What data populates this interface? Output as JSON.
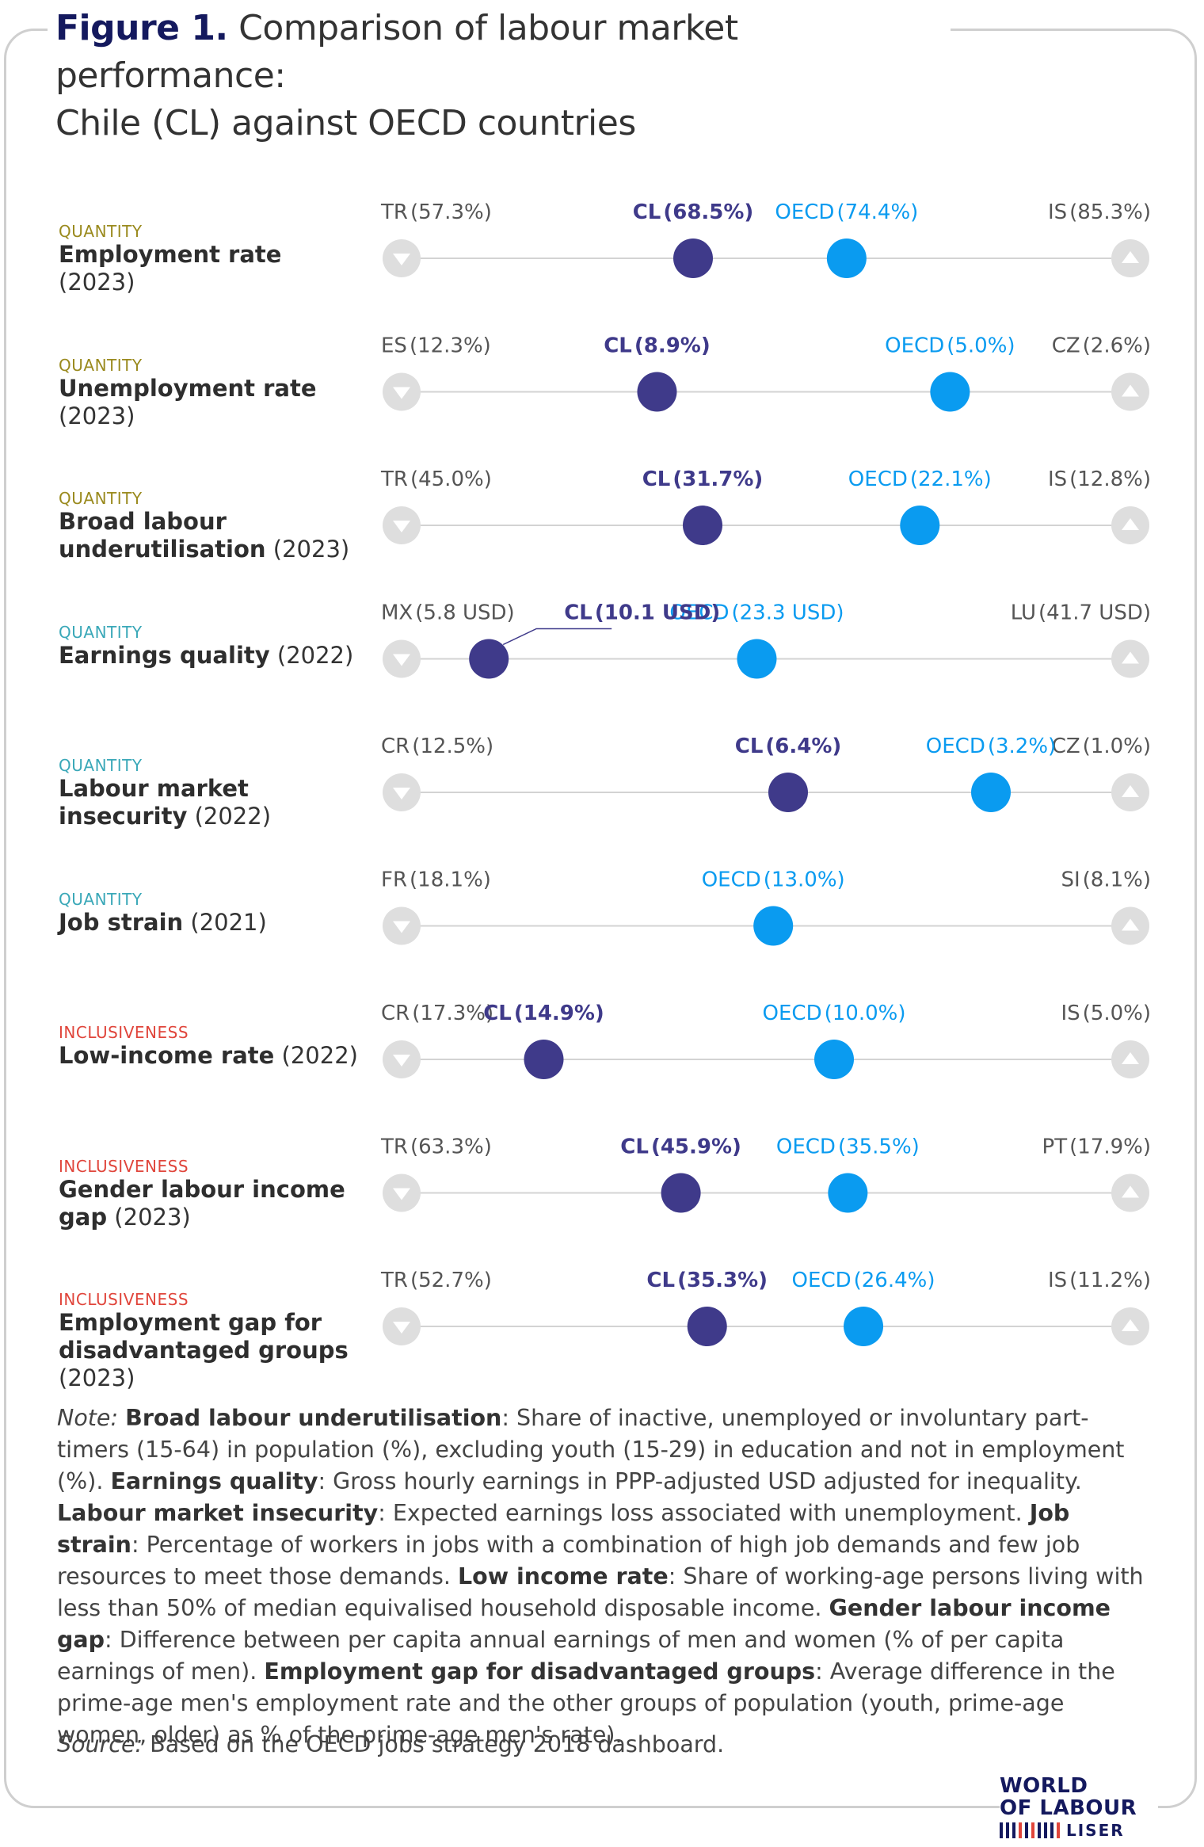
{
  "title": {
    "figure_label": "Figure 1.",
    "line1": "Comparison of labour market performance:",
    "line2": "Chile (CL) against OECD countries"
  },
  "colors": {
    "cl": "#3f3a8a",
    "oecd": "#0a9bf0",
    "quantity": "#9a8a1e",
    "quality": "#3aa8b8",
    "inclusiveness": "#e0453b",
    "endpoint": "#dedede",
    "track": "#d3d3d3"
  },
  "chart_data": {
    "type": "dot-range",
    "rows": [
      {
        "category": "QUANTITY",
        "cat_key": "quantity",
        "name": "Employment rate",
        "year": "(2023)",
        "worst": {
          "code": "TR",
          "label": "(57.3%)",
          "value": 57.3
        },
        "best": {
          "code": "IS",
          "label": "(85.3%)",
          "value": 85.3
        },
        "cl": {
          "code": "CL",
          "label": "(68.5%)",
          "value": 68.5
        },
        "oecd": {
          "code": "OECD",
          "label": "(74.4%)",
          "value": 74.4
        }
      },
      {
        "category": "QUANTITY",
        "cat_key": "quantity",
        "name": "Unemployment rate",
        "year": "(2023)",
        "worst": {
          "code": "ES",
          "label": "(12.3%)",
          "value": 12.3
        },
        "best": {
          "code": "CZ",
          "label": "(2.6%)",
          "value": 2.6
        },
        "cl": {
          "code": "CL",
          "label": "(8.9%)",
          "value": 8.9
        },
        "oecd": {
          "code": "OECD",
          "label": "(5.0%)",
          "value": 5.0
        }
      },
      {
        "category": "QUANTITY",
        "cat_key": "quantity",
        "name": "Broad labour underutilisation",
        "year": "(2023)",
        "worst": {
          "code": "TR",
          "label": "(45.0%)",
          "value": 45.0
        },
        "best": {
          "code": "IS",
          "label": "(12.8%)",
          "value": 12.8
        },
        "cl": {
          "code": "CL",
          "label": "(31.7%)",
          "value": 31.7
        },
        "oecd": {
          "code": "OECD",
          "label": "(22.1%)",
          "value": 22.1
        }
      },
      {
        "category": "QUANTITY",
        "cat_key": "quality",
        "name": "Earnings quality",
        "year": "(2022)",
        "worst": {
          "code": "MX",
          "label": "(5.8 USD)",
          "value": 5.8
        },
        "best": {
          "code": "LU",
          "label": "(41.7 USD)",
          "value": 41.7
        },
        "cl": {
          "code": "CL",
          "label": "(10.1 USD)",
          "value": 10.1
        },
        "oecd": {
          "code": "OECD",
          "label": "(23.3 USD)",
          "value": 23.3
        }
      },
      {
        "category": "QUANTITY",
        "cat_key": "quality",
        "name": "Labour market insecurity",
        "year": "(2022)",
        "worst": {
          "code": "CR",
          "label": "(12.5%)",
          "value": 12.5
        },
        "best": {
          "code": "CZ",
          "label": "(1.0%)",
          "value": 1.0
        },
        "cl": {
          "code": "CL",
          "label": "(6.4%)",
          "value": 6.4
        },
        "oecd": {
          "code": "OECD",
          "label": "(3.2%)",
          "value": 3.2
        }
      },
      {
        "category": "QUANTITY",
        "cat_key": "quality",
        "name": "Job strain",
        "year": "(2021)",
        "worst": {
          "code": "FR",
          "label": "(18.1%)",
          "value": 18.1
        },
        "best": {
          "code": "SI",
          "label": "(8.1%)",
          "value": 8.1
        },
        "cl": null,
        "oecd": {
          "code": "OECD",
          "label": "(13.0%)",
          "value": 13.0
        }
      },
      {
        "category": "INCLUSIVENESS",
        "cat_key": "inclusiveness",
        "name": "Low-income rate",
        "year": "(2022)",
        "worst": {
          "code": "CR",
          "label": "(17.3%)",
          "value": 17.3
        },
        "best": {
          "code": "IS",
          "label": "(5.0%)",
          "value": 5.0
        },
        "cl": {
          "code": "CL",
          "label": "(14.9%)",
          "value": 14.9
        },
        "oecd": {
          "code": "OECD",
          "label": "(10.0%)",
          "value": 10.0
        }
      },
      {
        "category": "INCLUSIVENESS",
        "cat_key": "inclusiveness",
        "name": "Gender labour income gap",
        "year": "(2023)",
        "worst": {
          "code": "TR",
          "label": "(63.3%)",
          "value": 63.3
        },
        "best": {
          "code": "PT",
          "label": "(17.9%)",
          "value": 17.9
        },
        "cl": {
          "code": "CL",
          "label": "(45.9%)",
          "value": 45.9
        },
        "oecd": {
          "code": "OECD",
          "label": "(35.5%)",
          "value": 35.5
        }
      },
      {
        "category": "INCLUSIVENESS",
        "cat_key": "inclusiveness",
        "name": "Employment gap for disadvantaged groups",
        "year": "(2023)",
        "worst": {
          "code": "TR",
          "label": "(52.7%)",
          "value": 52.7
        },
        "best": {
          "code": "IS",
          "label": "(11.2%)",
          "value": 11.2
        },
        "cl": {
          "code": "CL",
          "label": "(35.3%)",
          "value": 35.3
        },
        "oecd": {
          "code": "OECD",
          "label": "(26.4%)",
          "value": 26.4
        }
      }
    ]
  },
  "note": {
    "intro": "Note:",
    "items": [
      {
        "term": "Broad labour underutilisation",
        "text": ": Share of inactive, unemployed or involuntary part-timers (15-64) in population (%), excluding youth (15-29) in education and not in employment (%). "
      },
      {
        "term": "Earnings quality",
        "text": ": Gross hourly earnings in PPP-adjusted USD adjusted for inequality. "
      },
      {
        "term": "Labour market insecurity",
        "text": ": Expected earnings loss associated with unemployment. "
      },
      {
        "term": "Job strain",
        "text": ": Percentage of workers in jobs with a combination of high job demands and few job resources to meet those demands. "
      },
      {
        "term": "Low income rate",
        "text": ": Share of working-age persons living with less than 50% of median equivalised household disposable income. "
      },
      {
        "term": "Gender labour income gap",
        "text": ": Difference between per capita annual earnings of men and women (% of per capita earnings of men). "
      },
      {
        "term": "Employment gap for disadvantaged groups",
        "text": ": Average difference in the prime-age men's employment rate and the other groups of population (youth, prime-age women, older) as % of the prime-age men's rate)."
      }
    ]
  },
  "source": {
    "intro": "Source:",
    "text": " Based on the OECD jobs strategy 2018 dashboard."
  },
  "logo": {
    "line1": "WORLD",
    "line2": "OF LABOUR",
    "line3": "LISER"
  }
}
